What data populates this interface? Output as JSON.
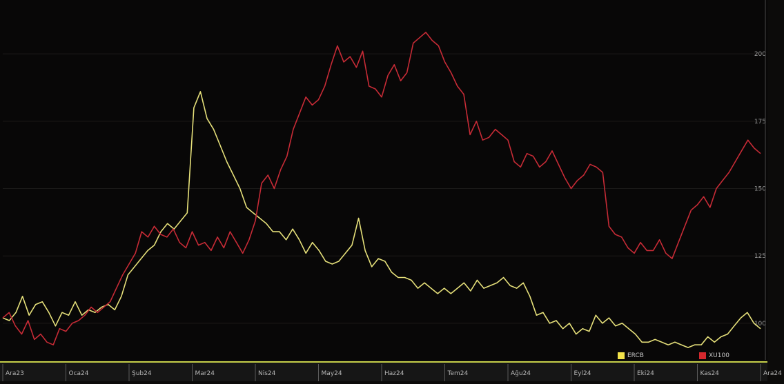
{
  "chart_data": {
    "type": "line",
    "title": "",
    "xlabel": "",
    "ylabel": "",
    "x_ticks": [
      "Ara23",
      "Oca24",
      "Şub24",
      "Mar24",
      "Nis24",
      "May24",
      "Haz24",
      "Tem24",
      "Ağu24",
      "Eyl24",
      "Eki24",
      "Kas24",
      "Ara24"
    ],
    "y_ticks": [
      200,
      175,
      150,
      125,
      100
    ],
    "ylim": [
      90,
      220
    ],
    "legend_position": "bottom-right",
    "grid": false,
    "series": [
      {
        "name": "ERCB",
        "color": "#e6e07a",
        "values": [
          102,
          101,
          104,
          110,
          103,
          107,
          108,
          104,
          99,
          104,
          103,
          108,
          103,
          105,
          104,
          106,
          107,
          105,
          110,
          118,
          121,
          124,
          127,
          129,
          134,
          137,
          135,
          138,
          141,
          180,
          186,
          176,
          172,
          166,
          160,
          155,
          150,
          143,
          141,
          139,
          137,
          134,
          134,
          131,
          135,
          131,
          126,
          130,
          127,
          123,
          122,
          123,
          126,
          129,
          139,
          127,
          121,
          124,
          123,
          119,
          117,
          117,
          116,
          113,
          115,
          113,
          111,
          113,
          111,
          113,
          115,
          112,
          116,
          113,
          114,
          115,
          117,
          114,
          113,
          115,
          110,
          103,
          104,
          100,
          101,
          98,
          100,
          96,
          98,
          97,
          103,
          100,
          102,
          99,
          100,
          98,
          96,
          93,
          93,
          94,
          93,
          92,
          93,
          92,
          91,
          92,
          92,
          95,
          93,
          95,
          96,
          99,
          102,
          104,
          100,
          98
        ]
      },
      {
        "name": "XU100",
        "color": "#c72b36",
        "values": [
          102,
          104,
          99,
          96,
          101,
          94,
          96,
          93,
          92,
          98,
          97,
          100,
          101,
          103,
          106,
          104,
          106,
          108,
          113,
          118,
          122,
          126,
          134,
          132,
          136,
          133,
          132,
          135,
          130,
          128,
          134,
          129,
          130,
          127,
          132,
          128,
          134,
          130,
          126,
          131,
          138,
          152,
          155,
          150,
          157,
          162,
          172,
          178,
          184,
          181,
          183,
          188,
          196,
          203,
          197,
          199,
          195,
          201,
          188,
          187,
          184,
          192,
          196,
          190,
          193,
          204,
          206,
          208,
          205,
          203,
          197,
          193,
          188,
          185,
          170,
          175,
          168,
          169,
          172,
          170,
          168,
          160,
          158,
          163,
          162,
          158,
          160,
          164,
          159,
          154,
          150,
          153,
          155,
          159,
          158,
          156,
          136,
          133,
          132,
          128,
          126,
          130,
          127,
          127,
          131,
          126,
          124,
          130,
          136,
          142,
          144,
          147,
          143,
          150,
          153,
          156,
          160,
          164,
          168,
          165,
          163
        ]
      }
    ]
  }
}
